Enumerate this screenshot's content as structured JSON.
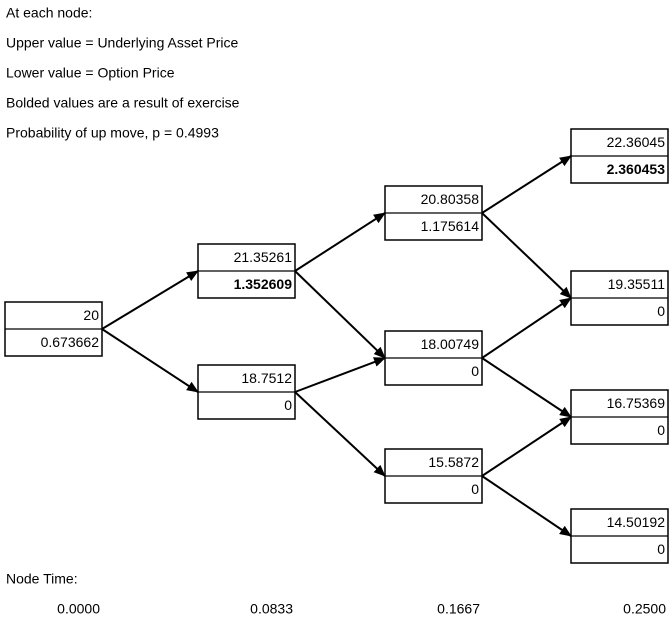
{
  "header": {
    "lines": [
      "At each node:",
      " Upper value = Underlying Asset Price",
      " Lower value = Option Price",
      "Bolded values are a result of exercise",
      "Probability of up move, p = 0.4993"
    ]
  },
  "nodes": [
    {
      "upper": 20,
      "lower": 0.673662,
      "lower_bold": false
    },
    {
      "upper": 21.35261,
      "lower": 1.352609,
      "lower_bold": true
    },
    {
      "upper": 18.7512,
      "lower": 0,
      "lower_bold": false
    },
    {
      "upper": 20.80358,
      "lower": 1.175614,
      "lower_bold": false
    },
    {
      "upper": 18.00749,
      "lower": 0,
      "lower_bold": false
    },
    {
      "upper": 15.5872,
      "lower": 0,
      "lower_bold": false
    },
    {
      "upper": 22.36045,
      "lower": 2.360453,
      "lower_bold": true
    },
    {
      "upper": 19.35511,
      "lower": 0,
      "lower_bold": false
    },
    {
      "upper": 16.75369,
      "lower": 0,
      "lower_bold": false
    },
    {
      "upper": 14.50192,
      "lower": 0,
      "lower_bold": false
    }
  ],
  "node_time": {
    "label": "Node Time:",
    "times": [
      "0.0000",
      "0.0833",
      "0.1667",
      "0.2500"
    ]
  }
}
